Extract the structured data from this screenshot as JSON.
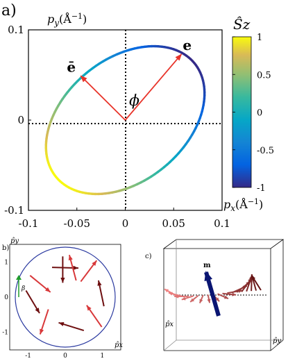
{
  "chart_data": [
    {
      "panel": "a)",
      "type": "line",
      "xlabel": "p_x(Å⁻¹)",
      "ylabel": "p_y(Å⁻¹)",
      "xlim": [
        -0.1,
        0.1
      ],
      "ylim": [
        -0.1,
        0.1
      ],
      "x_ticks": [
        "-0.1",
        "-0.05",
        "0",
        "0.05",
        "0.1"
      ],
      "y_ticks": [
        "0.1",
        "0",
        "-0.1"
      ],
      "curve": {
        "shape": "tilted ellipse",
        "center": [
          0,
          0
        ],
        "rotation_deg": 45,
        "semi_axis_major": 0.0955,
        "semi_axis_minor": 0.0655,
        "color_by": "Ŝz"
      },
      "vectors": [
        {
          "label": "e",
          "from": [
            0,
            0
          ],
          "to": [
            0.058,
            0.073
          ]
        },
        {
          "label": "ē",
          "from": [
            0,
            0
          ],
          "to": [
            -0.046,
            0.049
          ]
        }
      ],
      "angle_label": "ϕ",
      "colorbar": {
        "title": "Ŝz",
        "range": [
          -1,
          1
        ],
        "ticks": [
          "1",
          "0.5",
          "0",
          "-0.5",
          "-1"
        ],
        "colormap": "parula"
      }
    },
    {
      "panel": "b)",
      "type": "scatter",
      "xlabel": "p̂x",
      "ylabel": "p̂y",
      "xlim": [
        -1.5,
        1.5
      ],
      "ylim": [
        -1.5,
        1.5
      ],
      "x_ticks": [
        "-1",
        "0",
        "1"
      ],
      "y_ticks": [
        "1",
        "0",
        "-1"
      ],
      "angle_label": "β",
      "unit_circle_radius": 1.35,
      "arrows": [
        {
          "x": 0.0,
          "y": 0.62,
          "dx": 0.72,
          "dy": -0.02
        },
        {
          "x": 0.47,
          "y": 0.55,
          "dx": 0.4,
          "dy": 0.53
        },
        {
          "x": 0.72,
          "y": 0.08,
          "dx": -0.2,
          "dy": 0.95
        },
        {
          "x": 0.58,
          "y": -0.4,
          "dx": -0.5,
          "dy": 0.72
        },
        {
          "x": 0.12,
          "y": -0.62,
          "dx": -0.87,
          "dy": 0.27
        },
        {
          "x": -0.42,
          "y": -0.52,
          "dx": -0.22,
          "dy": -0.67
        },
        {
          "x": -0.65,
          "y": -0.1,
          "dx": 0.45,
          "dy": -0.75
        },
        {
          "x": -0.5,
          "y": 0.28,
          "dx": 0.55,
          "dy": -0.45
        },
        {
          "x": -0.05,
          "y": 0.58,
          "dx": 0.0,
          "dy": -0.96
        },
        {
          "x": 0.15,
          "y": 0.62,
          "dx": -0.2,
          "dy": 0.75
        }
      ]
    },
    {
      "panel": "c)",
      "type": "diagram",
      "xlabel": "p̂x",
      "ylabel": "p̂y",
      "vector_label": "m",
      "helix_arrow_count": 18
    }
  ]
}
